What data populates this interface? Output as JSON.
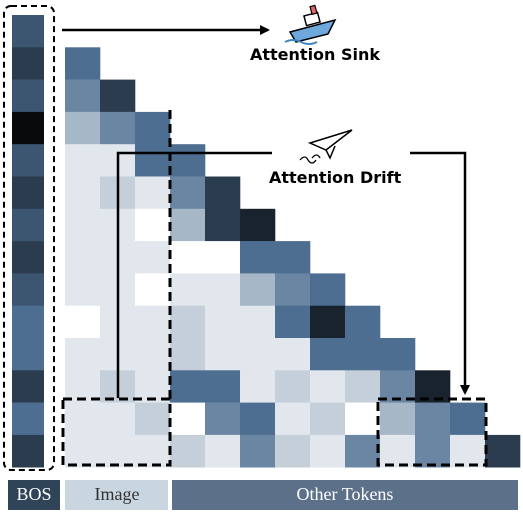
{
  "annotations": {
    "sink": "Attention Sink",
    "drift": "Attention Drift"
  },
  "tokens": {
    "bos": "BOS",
    "image": "Image",
    "other": "Other Tokens"
  }
}
